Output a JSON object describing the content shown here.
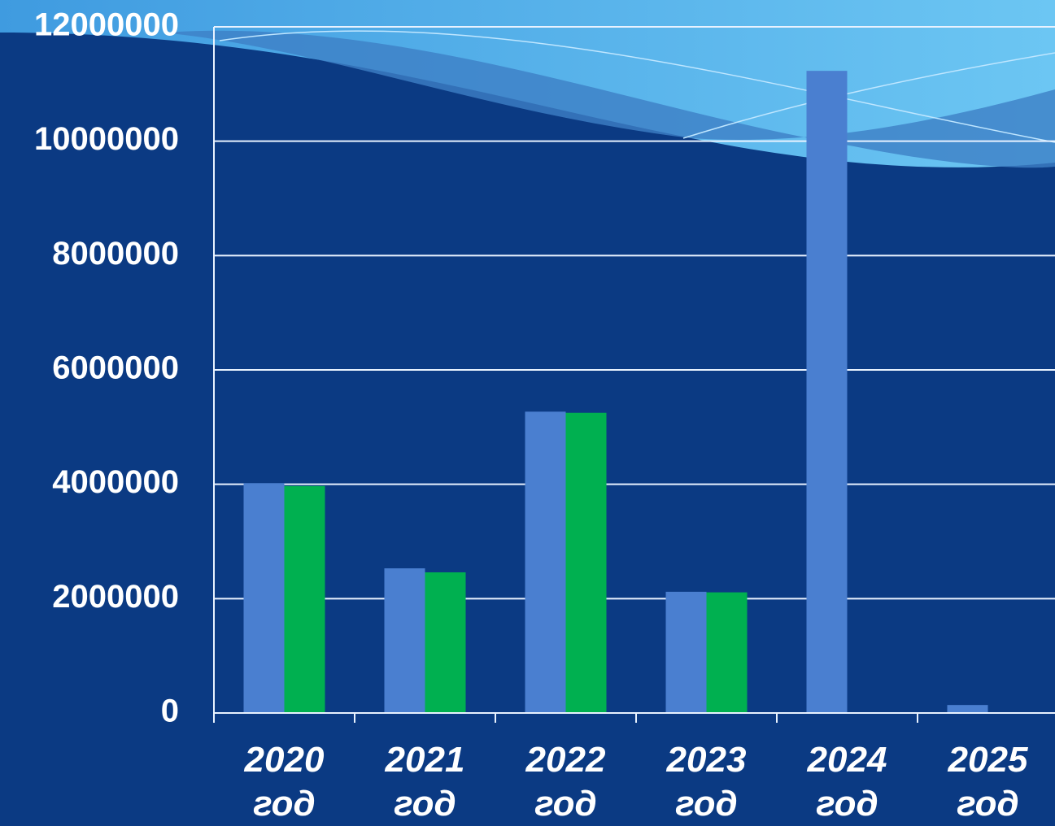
{
  "chart_data": {
    "type": "bar",
    "categories": [
      "2020 год",
      "2021 год",
      "2022 год",
      "2023 год",
      "2024 год",
      "2025 год"
    ],
    "series": [
      {
        "color": "#4a7fd0",
        "values": [
          4020000,
          2530000,
          5270000,
          2120000,
          11230000,
          140000
        ]
      },
      {
        "color": "#00b050",
        "values": [
          3970000,
          2460000,
          5250000,
          2110000,
          null,
          null
        ]
      }
    ],
    "ylim": [
      0,
      12000000
    ],
    "yticks": [
      0,
      2000000,
      4000000,
      6000000,
      8000000,
      10000000,
      12000000
    ],
    "grid": true
  }
}
